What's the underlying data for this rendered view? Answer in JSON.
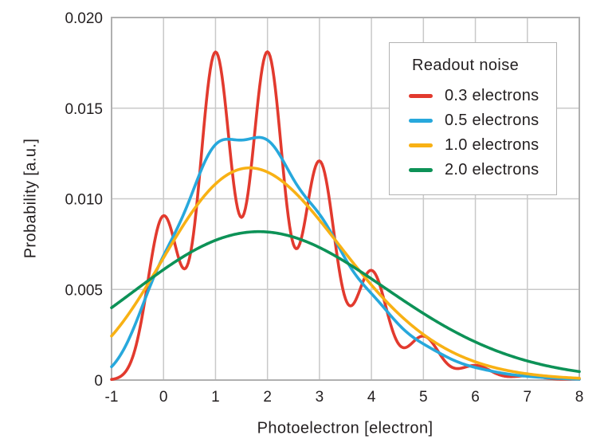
{
  "chart_data": {
    "type": "line",
    "title": "",
    "xlabel": "Photoelectron [electron]",
    "ylabel": "Probability [a.u.]",
    "xlim": [
      -1,
      8
    ],
    "ylim": [
      0,
      0.02
    ],
    "x_ticks": [
      -1,
      0,
      1,
      2,
      3,
      4,
      5,
      6,
      7,
      8
    ],
    "x_tick_labels": [
      "-1",
      "0",
      "1",
      "2",
      "3",
      "4",
      "5",
      "6",
      "7",
      "8"
    ],
    "y_ticks": [
      0,
      0.005,
      0.01,
      0.015,
      0.02
    ],
    "y_tick_labels": [
      "0",
      "0.005",
      "0.010",
      "0.015",
      "0.020"
    ],
    "grid": true,
    "grid_color": "#c9c9c9",
    "frame_color": "#b0b0b0",
    "text_color": "#231f20",
    "legend": {
      "title": "Readout noise",
      "position": "upper-right",
      "border_color": "#b3b3b3",
      "background": "#ffffff"
    },
    "model": {
      "description": "Photon-counting pdf with readout noise: y(x) = amplitude * sum_n [ Poisson(n; lambda) * NormalPDF(x; mean=n, sigma) ]",
      "lambda": 2,
      "amplitude": 0.05,
      "n_max": 20,
      "sample_step": 0.025
    },
    "series": [
      {
        "label": "0.3 electrons",
        "sigma": 0.3,
        "color": "#e23a2e",
        "key_points": [
          {
            "x": -1,
            "y": 0.0
          },
          {
            "x": 0,
            "y": 0.009
          },
          {
            "x": 0.5,
            "y": 0.0067
          },
          {
            "x": 1,
            "y": 0.018
          },
          {
            "x": 1.5,
            "y": 0.009
          },
          {
            "x": 2,
            "y": 0.018
          },
          {
            "x": 3,
            "y": 0.012
          },
          {
            "x": 4,
            "y": 0.006
          },
          {
            "x": 5,
            "y": 0.0024
          },
          {
            "x": 6,
            "y": 0.0008
          },
          {
            "x": 7,
            "y": 0.0002
          },
          {
            "x": 8,
            "y": 0.0001
          }
        ]
      },
      {
        "label": "0.5 electrons",
        "sigma": 0.5,
        "color": "#27a8dc",
        "key_points": [
          {
            "x": -1,
            "y": 0.0007
          },
          {
            "x": 0,
            "y": 0.0069
          },
          {
            "x": 1.5,
            "y": 0.0133
          },
          {
            "x": 2,
            "y": 0.0134
          },
          {
            "x": 3,
            "y": 0.0093
          },
          {
            "x": 4,
            "y": 0.0045
          },
          {
            "x": 5,
            "y": 0.002
          },
          {
            "x": 6,
            "y": 0.0006
          },
          {
            "x": 8,
            "y": 0.0001
          }
        ]
      },
      {
        "label": "1.0 electrons",
        "sigma": 1.0,
        "color": "#f8b114",
        "key_points": [
          {
            "x": -1,
            "y": 0.0024
          },
          {
            "x": 0,
            "y": 0.0066
          },
          {
            "x": 1.8,
            "y": 0.0117
          },
          {
            "x": 3,
            "y": 0.0092
          },
          {
            "x": 4,
            "y": 0.0052
          },
          {
            "x": 5,
            "y": 0.0023
          },
          {
            "x": 6,
            "y": 0.0008
          },
          {
            "x": 8,
            "y": 0.0002
          }
        ]
      },
      {
        "label": "2.0 electrons",
        "sigma": 2.0,
        "color": "#0d9257",
        "key_points": [
          {
            "x": -1,
            "y": 0.004
          },
          {
            "x": 0,
            "y": 0.0061
          },
          {
            "x": 1.9,
            "y": 0.0083
          },
          {
            "x": 3,
            "y": 0.0075
          },
          {
            "x": 4,
            "y": 0.0058
          },
          {
            "x": 5,
            "y": 0.0039
          },
          {
            "x": 6,
            "y": 0.0023
          },
          {
            "x": 7,
            "y": 0.0012
          },
          {
            "x": 8,
            "y": 0.0006
          }
        ]
      }
    ]
  }
}
